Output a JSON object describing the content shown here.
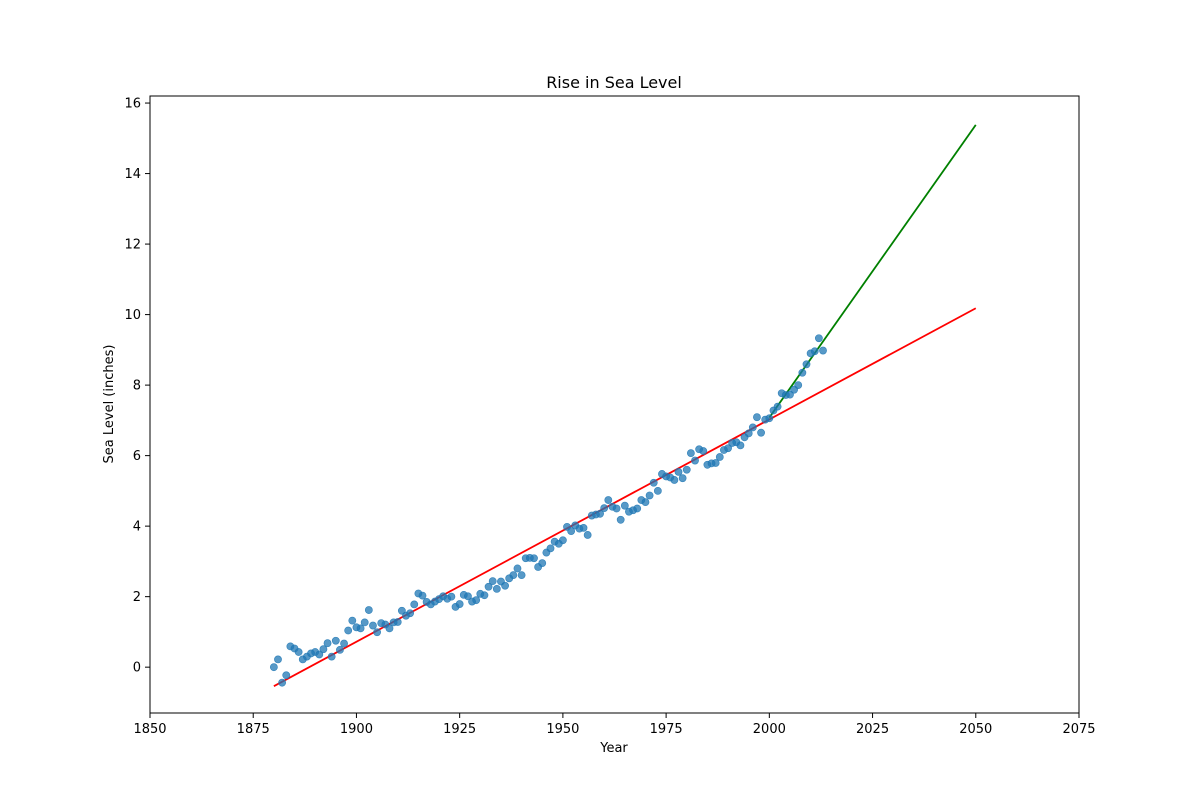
{
  "chart_data": {
    "type": "scatter",
    "title": "Rise in Sea Level",
    "xlabel": "Year",
    "ylabel": "Sea Level (inches)",
    "xlim": [
      1850,
      2075
    ],
    "ylim": [
      -1.3,
      16.2
    ],
    "xticks": [
      1850,
      1875,
      1900,
      1925,
      1950,
      1975,
      2000,
      2025,
      2050,
      2075
    ],
    "yticks": [
      0,
      2,
      4,
      6,
      8,
      10,
      12,
      14,
      16
    ],
    "grid": false,
    "legend": "none",
    "series": [
      {
        "kind": "scatter",
        "color": "#1f77b4",
        "points": [
          [
            1880,
            0.0
          ],
          [
            1881,
            0.22
          ],
          [
            1882,
            -0.44
          ],
          [
            1883,
            -0.23
          ],
          [
            1884,
            0.59
          ],
          [
            1885,
            0.53
          ],
          [
            1886,
            0.43
          ],
          [
            1887,
            0.22
          ],
          [
            1888,
            0.3
          ],
          [
            1889,
            0.39
          ],
          [
            1890,
            0.43
          ],
          [
            1891,
            0.36
          ],
          [
            1892,
            0.51
          ],
          [
            1893,
            0.68
          ],
          [
            1894,
            0.3
          ],
          [
            1895,
            0.75
          ],
          [
            1896,
            0.49
          ],
          [
            1897,
            0.67
          ],
          [
            1898,
            1.04
          ],
          [
            1899,
            1.32
          ],
          [
            1900,
            1.13
          ],
          [
            1901,
            1.1
          ],
          [
            1902,
            1.27
          ],
          [
            1903,
            1.62
          ],
          [
            1904,
            1.18
          ],
          [
            1905,
            0.99
          ],
          [
            1906,
            1.25
          ],
          [
            1907,
            1.21
          ],
          [
            1908,
            1.1
          ],
          [
            1909,
            1.27
          ],
          [
            1910,
            1.28
          ],
          [
            1911,
            1.6
          ],
          [
            1912,
            1.46
          ],
          [
            1913,
            1.53
          ],
          [
            1914,
            1.78
          ],
          [
            1915,
            2.09
          ],
          [
            1916,
            2.03
          ],
          [
            1917,
            1.85
          ],
          [
            1918,
            1.78
          ],
          [
            1919,
            1.86
          ],
          [
            1920,
            1.93
          ],
          [
            1921,
            2.01
          ],
          [
            1922,
            1.94
          ],
          [
            1923,
            2.0
          ],
          [
            1924,
            1.71
          ],
          [
            1925,
            1.79
          ],
          [
            1926,
            2.05
          ],
          [
            1927,
            2.01
          ],
          [
            1928,
            1.86
          ],
          [
            1929,
            1.9
          ],
          [
            1930,
            2.08
          ],
          [
            1931,
            2.04
          ],
          [
            1932,
            2.28
          ],
          [
            1933,
            2.44
          ],
          [
            1934,
            2.22
          ],
          [
            1935,
            2.43
          ],
          [
            1936,
            2.31
          ],
          [
            1937,
            2.52
          ],
          [
            1938,
            2.61
          ],
          [
            1939,
            2.8
          ],
          [
            1940,
            2.61
          ],
          [
            1941,
            3.09
          ],
          [
            1942,
            3.1
          ],
          [
            1943,
            3.09
          ],
          [
            1944,
            2.84
          ],
          [
            1945,
            2.95
          ],
          [
            1946,
            3.25
          ],
          [
            1947,
            3.37
          ],
          [
            1948,
            3.56
          ],
          [
            1949,
            3.5
          ],
          [
            1950,
            3.6
          ],
          [
            1951,
            3.98
          ],
          [
            1952,
            3.86
          ],
          [
            1953,
            4.02
          ],
          [
            1954,
            3.93
          ],
          [
            1955,
            3.95
          ],
          [
            1956,
            3.75
          ],
          [
            1957,
            4.3
          ],
          [
            1958,
            4.33
          ],
          [
            1959,
            4.35
          ],
          [
            1960,
            4.51
          ],
          [
            1961,
            4.74
          ],
          [
            1962,
            4.55
          ],
          [
            1963,
            4.5
          ],
          [
            1964,
            4.18
          ],
          [
            1965,
            4.58
          ],
          [
            1966,
            4.41
          ],
          [
            1967,
            4.45
          ],
          [
            1968,
            4.5
          ],
          [
            1969,
            4.74
          ],
          [
            1970,
            4.68
          ],
          [
            1971,
            4.87
          ],
          [
            1972,
            5.23
          ],
          [
            1973,
            5.0
          ],
          [
            1974,
            5.48
          ],
          [
            1975,
            5.41
          ],
          [
            1976,
            5.38
          ],
          [
            1977,
            5.31
          ],
          [
            1978,
            5.54
          ],
          [
            1979,
            5.36
          ],
          [
            1980,
            5.6
          ],
          [
            1981,
            6.07
          ],
          [
            1982,
            5.86
          ],
          [
            1983,
            6.18
          ],
          [
            1984,
            6.13
          ],
          [
            1985,
            5.74
          ],
          [
            1986,
            5.78
          ],
          [
            1987,
            5.79
          ],
          [
            1988,
            5.96
          ],
          [
            1989,
            6.16
          ],
          [
            1990,
            6.21
          ],
          [
            1991,
            6.36
          ],
          [
            1992,
            6.38
          ],
          [
            1993,
            6.29
          ],
          [
            1994,
            6.52
          ],
          [
            1995,
            6.63
          ],
          [
            1996,
            6.8
          ],
          [
            1997,
            7.09
          ],
          [
            1998,
            6.65
          ],
          [
            1999,
            7.02
          ],
          [
            2000,
            7.06
          ],
          [
            2001,
            7.28
          ],
          [
            2002,
            7.39
          ],
          [
            2003,
            7.77
          ],
          [
            2004,
            7.72
          ],
          [
            2005,
            7.73
          ],
          [
            2006,
            7.87
          ],
          [
            2007,
            8.0
          ],
          [
            2008,
            8.35
          ],
          [
            2009,
            8.59
          ],
          [
            2010,
            8.9
          ],
          [
            2011,
            8.96
          ],
          [
            2012,
            9.33
          ],
          [
            2013,
            8.98
          ]
        ]
      },
      {
        "kind": "line",
        "color": "#ff0000",
        "points": [
          [
            1880,
            -0.54
          ],
          [
            2050,
            10.18
          ]
        ]
      },
      {
        "kind": "line",
        "color": "#008000",
        "points": [
          [
            2000,
            7.08
          ],
          [
            2050,
            15.38
          ]
        ]
      }
    ]
  }
}
